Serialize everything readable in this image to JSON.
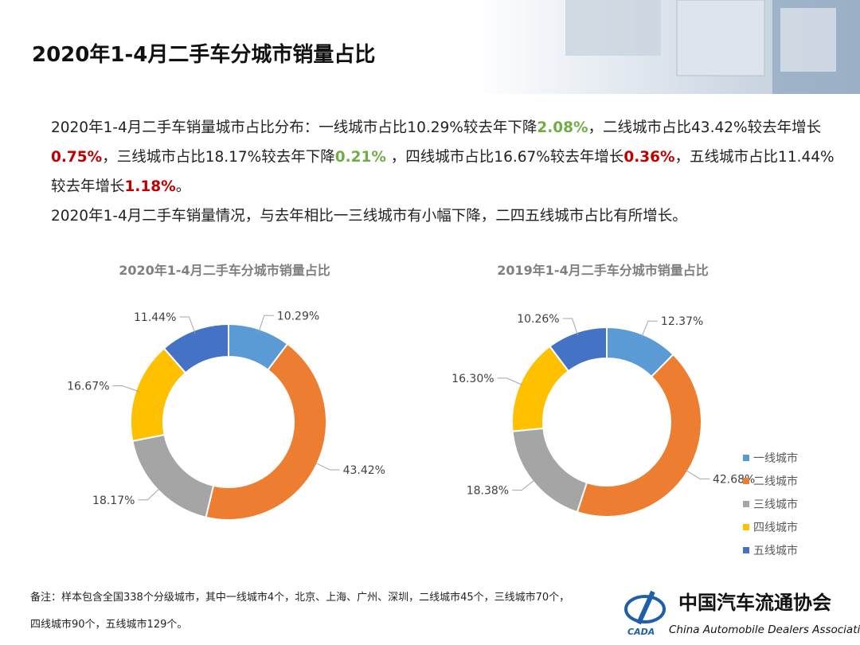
{
  "header": {
    "title": "2020年1-4月二手车分城市销量占比"
  },
  "paragraphs": [
    [
      {
        "text": "2020年1-4月二手车销量城市占比分布：一线城市占比10.29%较去年下降"
      },
      {
        "text": "2.08%",
        "color": "#70ad47"
      },
      {
        "text": "，二线城市占比43.42%较去年增长"
      },
      {
        "text": "0.75%",
        "color": "#c00000"
      },
      {
        "text": "，三线城市占比18.17%较去年下降"
      },
      {
        "text": "0.21%",
        "color": "#70ad47"
      },
      {
        "text": " ，四线城市占比16.67%较去年增长"
      },
      {
        "text": "0.36%",
        "color": "#c00000"
      },
      {
        "text": "，五线城市占比11.44%较去年增长"
      },
      {
        "text": "1.18%",
        "color": "#c00000"
      },
      {
        "text": "。"
      }
    ],
    [
      {
        "text": "2020年1-4月二手车销量情况，与去年相比一三线城市有小幅下降，二四五线城市占比有所增长。"
      }
    ]
  ],
  "chart_data": [
    {
      "type": "pie",
      "title": "2020年1-4月二手车分城市销量占比",
      "categories": [
        "一线城市",
        "二线城市",
        "三线城市",
        "四线城市",
        "五线城市"
      ],
      "colors": [
        "#5b9bd5",
        "#ed7d31",
        "#a5a5a5",
        "#ffc000",
        "#4472c4"
      ],
      "values": [
        10.29,
        43.42,
        18.17,
        16.67,
        11.44
      ],
      "value_labels": [
        "10.29%",
        "43.42%",
        "18.17%",
        "16.67%",
        "11.44%"
      ]
    },
    {
      "type": "pie",
      "title": "2019年1-4月二手车分城市销量占比",
      "categories": [
        "一线城市",
        "二线城市",
        "三线城市",
        "四线城市",
        "五线城市"
      ],
      "colors": [
        "#5b9bd5",
        "#ed7d31",
        "#a5a5a5",
        "#ffc000",
        "#4472c4"
      ],
      "values": [
        12.37,
        42.68,
        18.38,
        16.3,
        10.26
      ],
      "value_labels": [
        "12.37%",
        "42.68%",
        "18.38%",
        "16.30%",
        "10.26%"
      ],
      "legend": "right"
    }
  ],
  "footnote": "备注：样本包含全国338个分级城市，其中一线城市4个，北京、上海、广州、深圳，二线城市45个，三线城市70个，四线城市90个，五线城市129个。",
  "logo": {
    "mark": "CADA",
    "name": "中国汽车流通协会",
    "english": "China Automobile Dealers Association"
  }
}
